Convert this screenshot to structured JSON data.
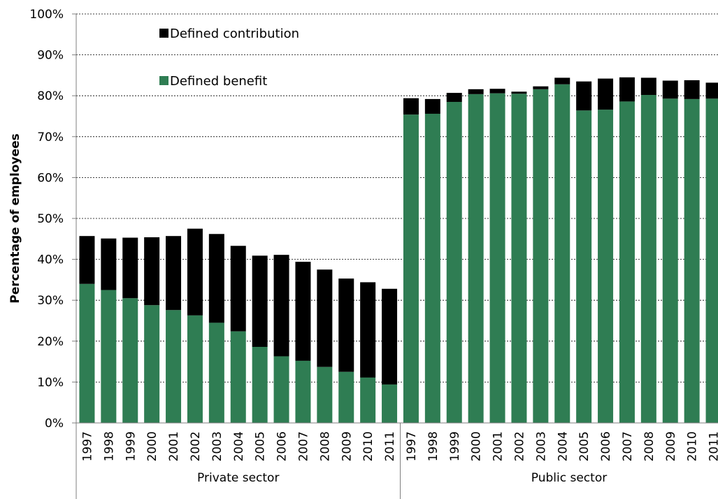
{
  "chart_data": {
    "type": "bar",
    "stacked": true,
    "ylabel": "Percentage of employees",
    "ylim": [
      0,
      100
    ],
    "yticks": [
      0,
      10,
      20,
      30,
      40,
      50,
      60,
      70,
      80,
      90,
      100
    ],
    "ytick_labels": [
      "0%",
      "10%",
      "20%",
      "30%",
      "40%",
      "50%",
      "60%",
      "70%",
      "80%",
      "90%",
      "100%"
    ],
    "grid": "horizontal dotted",
    "legend": {
      "placement": "top-left",
      "entries": [
        {
          "name": "Defined contribution",
          "color": "#000000"
        },
        {
          "name": "Defined benefit",
          "color": "#2f7d53"
        }
      ]
    },
    "groups": [
      {
        "label": "Private sector",
        "categories": [
          "1997",
          "1998",
          "1999",
          "2000",
          "2001",
          "2002",
          "2003",
          "2004",
          "2005",
          "2006",
          "2007",
          "2008",
          "2009",
          "2010",
          "2011"
        ],
        "series": [
          {
            "name": "Defined benefit",
            "values": [
              34,
              32.5,
              30.5,
              28.8,
              27.6,
              26.3,
              24.5,
              22.4,
              18.6,
              16.3,
              15.2,
              13.7,
              12.5,
              11.1,
              9.4
            ]
          },
          {
            "name": "Defined contribution",
            "values": [
              11.7,
              12.6,
              14.8,
              16.6,
              18.1,
              21.2,
              21.7,
              20.9,
              22.3,
              24.8,
              24.2,
              23.8,
              22.8,
              23.3,
              23.4
            ]
          }
        ]
      },
      {
        "label": "Public sector",
        "categories": [
          "1997",
          "1998",
          "1999",
          "2000",
          "2001",
          "2002",
          "2003",
          "2004",
          "2005",
          "2006",
          "2007",
          "2008",
          "2009",
          "2010",
          "2011"
        ],
        "series": [
          {
            "name": "Defined benefit",
            "values": [
              75.4,
              75.6,
              78.5,
              80.4,
              80.6,
              80.5,
              81.6,
              82.8,
              76.4,
              76.6,
              78.6,
              80.2,
              79.3,
              79.2,
              79.3
            ]
          },
          {
            "name": "Defined contribution",
            "values": [
              4.0,
              3.6,
              2.2,
              1.2,
              1.1,
              0.5,
              0.7,
              1.6,
              7.1,
              7.6,
              5.9,
              4.2,
              4.4,
              4.6,
              3.9
            ]
          }
        ]
      }
    ]
  },
  "colors": {
    "defined_benefit": "#2f7d53",
    "defined_contribution": "#000000",
    "axis": "#7f7f7f",
    "grid": "#000000"
  }
}
